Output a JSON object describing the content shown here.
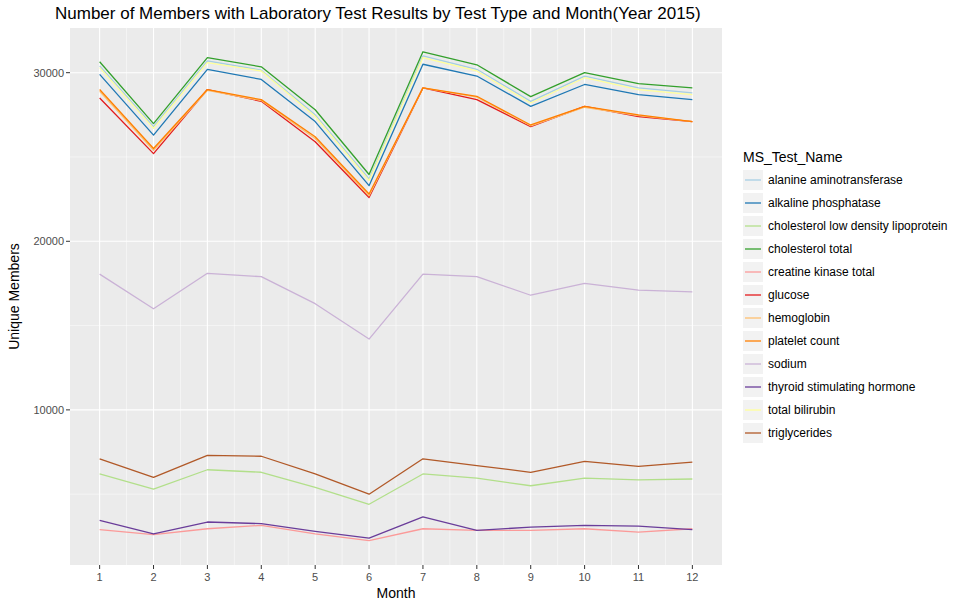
{
  "chart_data": {
    "type": "line",
    "title": "Number of Members with Laboratory Test Results by Test Type and Month(Year 2015)",
    "x_label": "Month",
    "y_label": "Unique Members",
    "legend_title": "MS_Test_Name",
    "legend": "right",
    "grid": true,
    "x": [
      1,
      2,
      3,
      4,
      5,
      6,
      7,
      8,
      9,
      10,
      11,
      12
    ],
    "xlim": [
      0.45,
      12.55
    ],
    "xticks": [
      1,
      2,
      3,
      4,
      5,
      6,
      7,
      8,
      9,
      10,
      11,
      12
    ],
    "ylim": [
      800,
      32650
    ],
    "yticks": [
      10000,
      20000,
      30000
    ],
    "series": [
      {
        "name": "alanine aminotransferase",
        "color": "#a6cee3",
        "values": [
          30400,
          26800,
          30700,
          30150,
          27500,
          23700,
          31000,
          30200,
          28300,
          29800,
          29100,
          28800
        ]
      },
      {
        "name": "alkaline phosphatase",
        "color": "#1f78b4",
        "values": [
          29900,
          26300,
          30200,
          29600,
          27100,
          23300,
          30500,
          29800,
          28000,
          29300,
          28700,
          28400
        ]
      },
      {
        "name": "cholesterol low density lipoprotein",
        "color": "#b2df8a",
        "values": [
          6200,
          5300,
          6450,
          6300,
          5400,
          4400,
          6200,
          5950,
          5500,
          5950,
          5850,
          5900
        ]
      },
      {
        "name": "cholesterol total",
        "color": "#33a02c",
        "values": [
          30650,
          26980,
          30890,
          30350,
          27800,
          23960,
          31240,
          30470,
          28580,
          30000,
          29350,
          29100
        ]
      },
      {
        "name": "creatine kinase total",
        "color": "#fb9a99",
        "values": [
          2900,
          2600,
          2950,
          3150,
          2650,
          2250,
          2950,
          2850,
          2850,
          2950,
          2750,
          2950
        ]
      },
      {
        "name": "glucose",
        "color": "#e31a1c",
        "values": [
          28500,
          25200,
          29000,
          28300,
          25900,
          22600,
          29100,
          28400,
          26800,
          28000,
          27400,
          27100
        ]
      },
      {
        "name": "hemoglobin",
        "color": "#fdbf6f",
        "values": [
          28900,
          25400,
          28950,
          28350,
          26100,
          22700,
          29100,
          28550,
          26850,
          27950,
          27450,
          27100
        ]
      },
      {
        "name": "platelet count",
        "color": "#ff7f00",
        "values": [
          29000,
          25500,
          29000,
          28400,
          26200,
          22800,
          29100,
          28600,
          26900,
          28000,
          27500,
          27100
        ]
      },
      {
        "name": "sodium",
        "color": "#cab2d6",
        "values": [
          18050,
          16000,
          18100,
          17900,
          16300,
          14200,
          18050,
          17900,
          16800,
          17500,
          17100,
          17000
        ]
      },
      {
        "name": "thyroid stimulating hormone",
        "color": "#6a3d9a",
        "values": [
          3450,
          2650,
          3350,
          3250,
          2800,
          2400,
          3650,
          2850,
          3050,
          3150,
          3100,
          2900
        ]
      },
      {
        "name": "total bilirubin",
        "color": "#ffff99",
        "values": [
          30300,
          26700,
          30600,
          30100,
          27400,
          23600,
          30900,
          30100,
          28200,
          29700,
          29000,
          28700
        ]
      },
      {
        "name": "triglycerides",
        "color": "#b15928",
        "values": [
          7100,
          6000,
          7300,
          7250,
          6200,
          5000,
          7100,
          6700,
          6300,
          6950,
          6650,
          6900
        ]
      }
    ]
  }
}
